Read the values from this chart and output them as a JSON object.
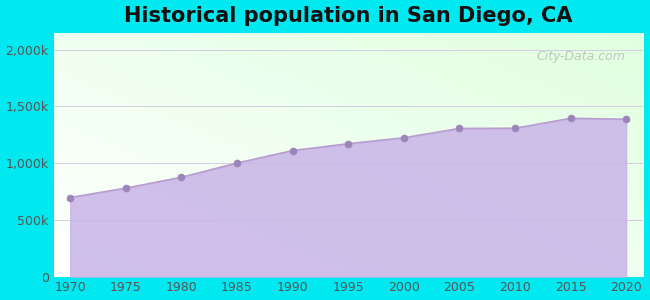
{
  "title": "Historical population in San Diego, CA",
  "title_fontsize": 15,
  "title_fontweight": "bold",
  "years": [
    1970,
    1975,
    1980,
    1985,
    1990,
    1995,
    2000,
    2005,
    2010,
    2015,
    2020
  ],
  "population": [
    697027,
    779688,
    875504,
    1001000,
    1110549,
    1171121,
    1223400,
    1305736,
    1307402,
    1394928,
    1386932
  ],
  "line_color": "#b89ecf",
  "fill_color": "#c8b4e8",
  "fill_alpha": 0.85,
  "marker_color": "#9b85bb",
  "marker_size": 5,
  "outer_bg": "#00e8f0",
  "grid_color": "#d4cce0",
  "ylabel_ticks": [
    0,
    500000,
    1000000,
    1500000,
    2000000
  ],
  "ylabel_labels": [
    "0",
    "500k",
    "1,000k",
    "1,500k",
    "2,000k"
  ],
  "xlim": [
    1968.5,
    2021.5
  ],
  "ylim": [
    0,
    2150000
  ],
  "watermark": "City-Data.com"
}
